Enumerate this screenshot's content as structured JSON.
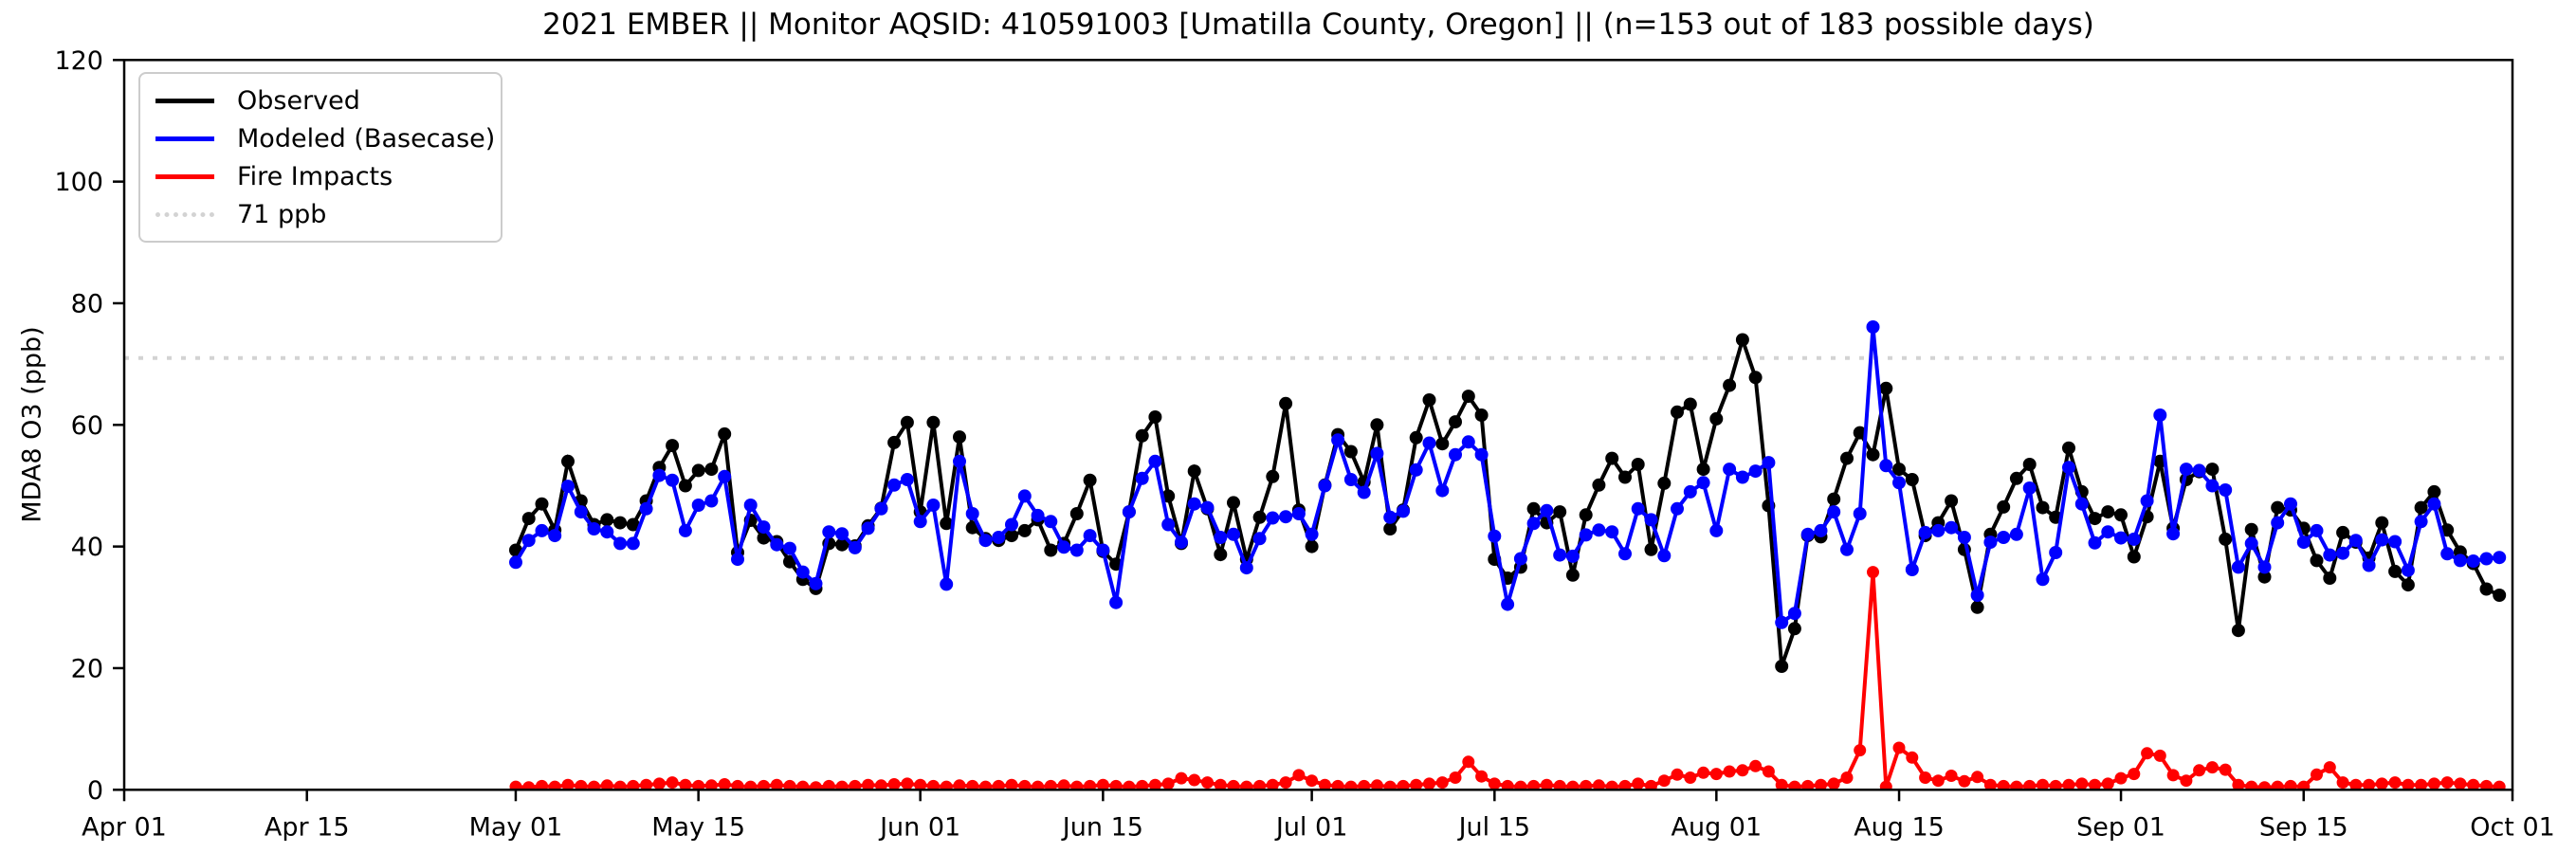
{
  "chart_data": {
    "type": "line",
    "title": "2021 EMBER || Monitor AQSID: 410591003 [Umatilla County, Oregon] || (n=153 out of 183 possible days)",
    "ylabel": "MDA8 O3 (ppb)",
    "ylim": [
      0,
      120
    ],
    "yticks": [
      0,
      20,
      40,
      60,
      80,
      100,
      120
    ],
    "x_total_days": 183,
    "x_ticks": [
      {
        "day": 0,
        "label": "Apr 01"
      },
      {
        "day": 14,
        "label": "Apr 15"
      },
      {
        "day": 30,
        "label": "May 01"
      },
      {
        "day": 44,
        "label": "May 15"
      },
      {
        "day": 61,
        "label": "Jun 01"
      },
      {
        "day": 75,
        "label": "Jun 15"
      },
      {
        "day": 91,
        "label": "Jul 01"
      },
      {
        "day": 105,
        "label": "Jul 15"
      },
      {
        "day": 122,
        "label": "Aug 01"
      },
      {
        "day": 136,
        "label": "Aug 15"
      },
      {
        "day": 153,
        "label": "Sep 01"
      },
      {
        "day": 167,
        "label": "Sep 15"
      },
      {
        "day": 183,
        "label": "Oct 01"
      }
    ],
    "series_start_day": 30,
    "series_start_date": "May 01",
    "series_end_date": "Sep 30",
    "grid": false,
    "legend_position": "upper-left",
    "threshold": {
      "value": 71,
      "label": "71 ppb",
      "color": "#d3d3d3"
    },
    "series": [
      {
        "name": "Observed",
        "color": "#000000",
        "values": [
          39.4,
          44.6,
          47.0,
          42.7,
          54.0,
          47.5,
          43.6,
          44.4,
          43.9,
          43.6,
          47.5,
          53.0,
          56.6,
          50.0,
          52.5,
          52.7,
          58.5,
          39.0,
          44.3,
          41.4,
          40.8,
          37.5,
          34.6,
          33.1,
          40.5,
          40.3,
          40.1,
          43.4,
          46.3,
          57.1,
          60.4,
          45.7,
          60.4,
          43.8,
          58.0,
          43.1,
          41.3,
          41.0,
          41.8,
          42.6,
          44.4,
          39.4,
          40.5,
          45.4,
          50.9,
          39.2,
          37.1,
          45.7,
          58.2,
          61.3,
          48.3,
          40.5,
          52.4,
          46.2,
          38.7,
          47.2,
          37.9,
          44.8,
          51.5,
          63.5,
          46.0,
          40.0,
          50.1,
          58.4,
          55.6,
          50.6,
          60.0,
          42.9,
          46.0,
          57.9,
          64.1,
          56.9,
          60.5,
          64.7,
          61.6,
          37.9,
          34.8,
          36.6,
          46.2,
          43.9,
          45.7,
          35.3,
          45.2,
          50.1,
          54.5,
          51.4,
          53.5,
          39.5,
          50.4,
          62.1,
          63.4,
          52.7,
          61.0,
          66.5,
          74.0,
          67.8,
          46.7,
          20.3,
          26.5,
          41.8,
          41.6,
          47.8,
          54.5,
          58.7,
          55.1,
          66.0,
          52.7,
          51.0,
          41.8,
          43.9,
          47.5,
          39.5,
          30.0,
          42.0,
          46.5,
          51.2,
          53.5,
          46.4,
          44.8,
          56.2,
          49.0,
          44.6,
          45.7,
          45.2,
          38.3,
          44.9,
          54.0,
          43.0,
          51.0,
          52.3,
          52.7,
          41.2,
          26.2,
          42.8,
          35.0,
          46.4,
          46.0,
          43.0,
          37.7,
          34.8,
          42.3,
          40.7,
          38.1,
          43.9,
          35.9,
          33.7,
          46.4,
          49.0,
          42.7,
          39.1,
          37.2,
          33.0,
          32.0
        ]
      },
      {
        "name": "Modeled (Basecase)",
        "color": "#0000ff",
        "values": [
          37.4,
          41.0,
          42.6,
          41.8,
          49.9,
          45.7,
          42.9,
          42.4,
          40.5,
          40.5,
          46.2,
          51.7,
          50.9,
          42.6,
          46.8,
          47.5,
          51.5,
          37.9,
          46.8,
          43.2,
          40.3,
          39.7,
          35.8,
          33.9,
          42.4,
          42.1,
          39.8,
          43.0,
          46.2,
          50.1,
          51.0,
          44.1,
          46.8,
          33.8,
          54.0,
          45.4,
          41.0,
          41.5,
          43.6,
          48.3,
          45.1,
          44.1,
          39.9,
          39.4,
          41.8,
          39.4,
          30.8,
          45.7,
          51.2,
          54.0,
          43.6,
          40.7,
          47.0,
          46.4,
          41.5,
          42.0,
          36.5,
          41.3,
          44.7,
          44.9,
          45.4,
          42.0,
          50.0,
          57.5,
          51.0,
          48.9,
          55.3,
          44.8,
          45.8,
          52.6,
          57.0,
          49.2,
          55.1,
          57.2,
          55.1,
          41.7,
          30.5,
          38.0,
          43.8,
          45.9,
          38.6,
          38.4,
          41.9,
          42.7,
          42.4,
          38.8,
          46.2,
          44.4,
          38.5,
          46.2,
          49.0,
          50.5,
          42.6,
          52.7,
          51.4,
          52.4,
          53.8,
          27.5,
          29.0,
          42.0,
          42.6,
          45.7,
          39.5,
          45.4,
          76.1,
          53.3,
          50.5,
          36.2,
          42.3,
          42.6,
          43.1,
          41.5,
          32.0,
          40.7,
          41.5,
          42.0,
          49.6,
          34.6,
          39.0,
          53.0,
          47.0,
          40.6,
          42.4,
          41.4,
          41.2,
          47.5,
          61.6,
          42.1,
          52.7,
          52.5,
          50.0,
          49.3,
          36.6,
          40.5,
          36.6,
          43.9,
          47.0,
          40.7,
          42.6,
          38.6,
          38.9,
          41.0,
          36.9,
          41.1,
          40.8,
          36.1,
          44.1,
          47.0,
          38.8,
          37.7,
          37.6,
          38.0,
          38.2
        ]
      },
      {
        "name": "Fire Impacts",
        "color": "#ff0000",
        "values": [
          0.5,
          0.4,
          0.6,
          0.5,
          0.8,
          0.6,
          0.5,
          0.7,
          0.5,
          0.6,
          0.8,
          1.0,
          1.2,
          0.8,
          0.6,
          0.7,
          0.9,
          0.6,
          0.5,
          0.6,
          0.8,
          0.6,
          0.5,
          0.4,
          0.6,
          0.5,
          0.6,
          0.8,
          0.7,
          0.9,
          1.0,
          0.8,
          0.6,
          0.5,
          0.7,
          0.6,
          0.5,
          0.6,
          0.8,
          0.6,
          0.5,
          0.6,
          0.7,
          0.5,
          0.6,
          0.8,
          0.6,
          0.5,
          0.6,
          0.8,
          1.0,
          1.9,
          1.6,
          1.2,
          0.8,
          0.6,
          0.5,
          0.6,
          0.8,
          1.2,
          2.4,
          1.5,
          0.8,
          0.6,
          0.5,
          0.6,
          0.7,
          0.5,
          0.6,
          0.8,
          1.0,
          1.2,
          2.0,
          4.6,
          2.2,
          1.0,
          0.6,
          0.5,
          0.6,
          0.8,
          0.6,
          0.5,
          0.6,
          0.7,
          0.5,
          0.6,
          1.0,
          0.6,
          1.5,
          2.5,
          2.0,
          2.8,
          2.6,
          3.0,
          3.2,
          3.9,
          3.0,
          0.8,
          0.5,
          0.6,
          0.8,
          1.0,
          2.0,
          6.5,
          35.8,
          0.5,
          6.9,
          5.3,
          2.0,
          1.5,
          2.3,
          1.4,
          2.1,
          0.8,
          0.6,
          0.5,
          0.6,
          0.8,
          0.6,
          0.8,
          1.0,
          0.8,
          1.0,
          1.9,
          2.6,
          6.0,
          5.6,
          2.4,
          1.5,
          3.2,
          3.7,
          3.3,
          0.8,
          0.5,
          0.4,
          0.5,
          0.6,
          0.5,
          2.5,
          3.7,
          1.2,
          0.8,
          0.8,
          1.0,
          1.2,
          0.8,
          0.8,
          1.0,
          1.2,
          1.0,
          0.8,
          0.6,
          0.5
        ]
      }
    ]
  }
}
